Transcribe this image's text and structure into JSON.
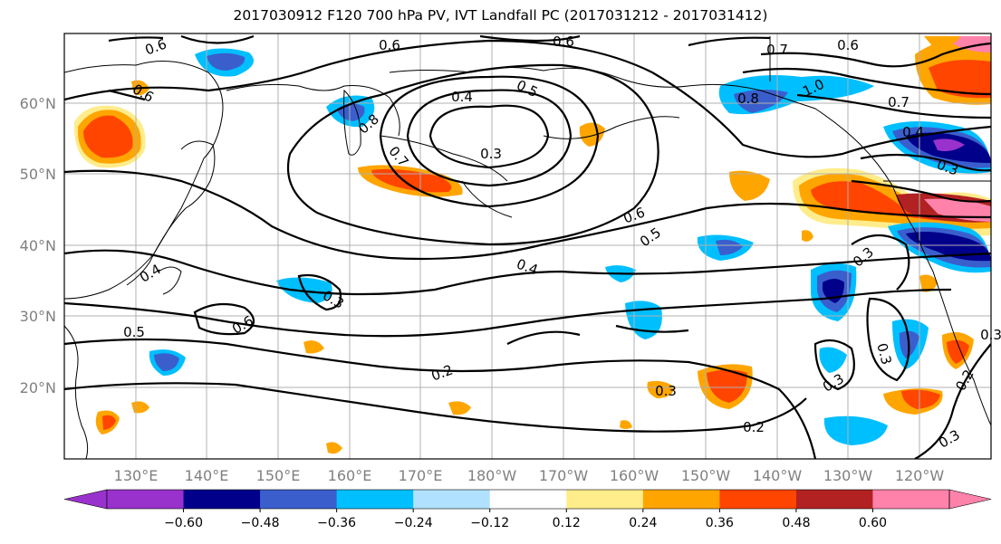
{
  "title": "2017030912 F120 700 hPa PV, IVT Landfall PC (2017031212 - 2017031412)",
  "map": {
    "lat_labels": [
      "60°N",
      "50°N",
      "40°N",
      "30°N",
      "20°N"
    ],
    "lon_labels": [
      "130°E",
      "140°E",
      "150°E",
      "160°E",
      "170°E",
      "180°W",
      "170°W",
      "160°W",
      "150°W",
      "140°W",
      "130°W",
      "120°W"
    ],
    "contour_labels": [
      "0.6",
      "0.6",
      "0.6",
      "0.7",
      "0.6",
      "1.0",
      "0.8",
      "0.7",
      "0.4",
      "0.5",
      "0.4",
      "0.3",
      "0.8",
      "0.7",
      "0.3",
      "0.6",
      "0.5",
      "0.4",
      "0.3",
      "0.6",
      "0.5",
      "0.4",
      "0.2",
      "0.3",
      "0.3",
      "0.2",
      "0.3",
      "0.2",
      "0.3",
      "0.3",
      "0.3",
      "0.6"
    ]
  },
  "colorbar": {
    "ticks": [
      "−0.60",
      "−0.48",
      "−0.36",
      "−0.24",
      "−0.12",
      "0.12",
      "0.24",
      "0.36",
      "0.48",
      "0.60"
    ],
    "colors": [
      "#9932cc",
      "#00008b",
      "#3a5fcd",
      "#00bfff",
      "#b0e2ff",
      "#ffffff",
      "#ffec8b",
      "#ffa500",
      "#ff4500",
      "#b22222",
      "#ff82ab"
    ]
  }
}
